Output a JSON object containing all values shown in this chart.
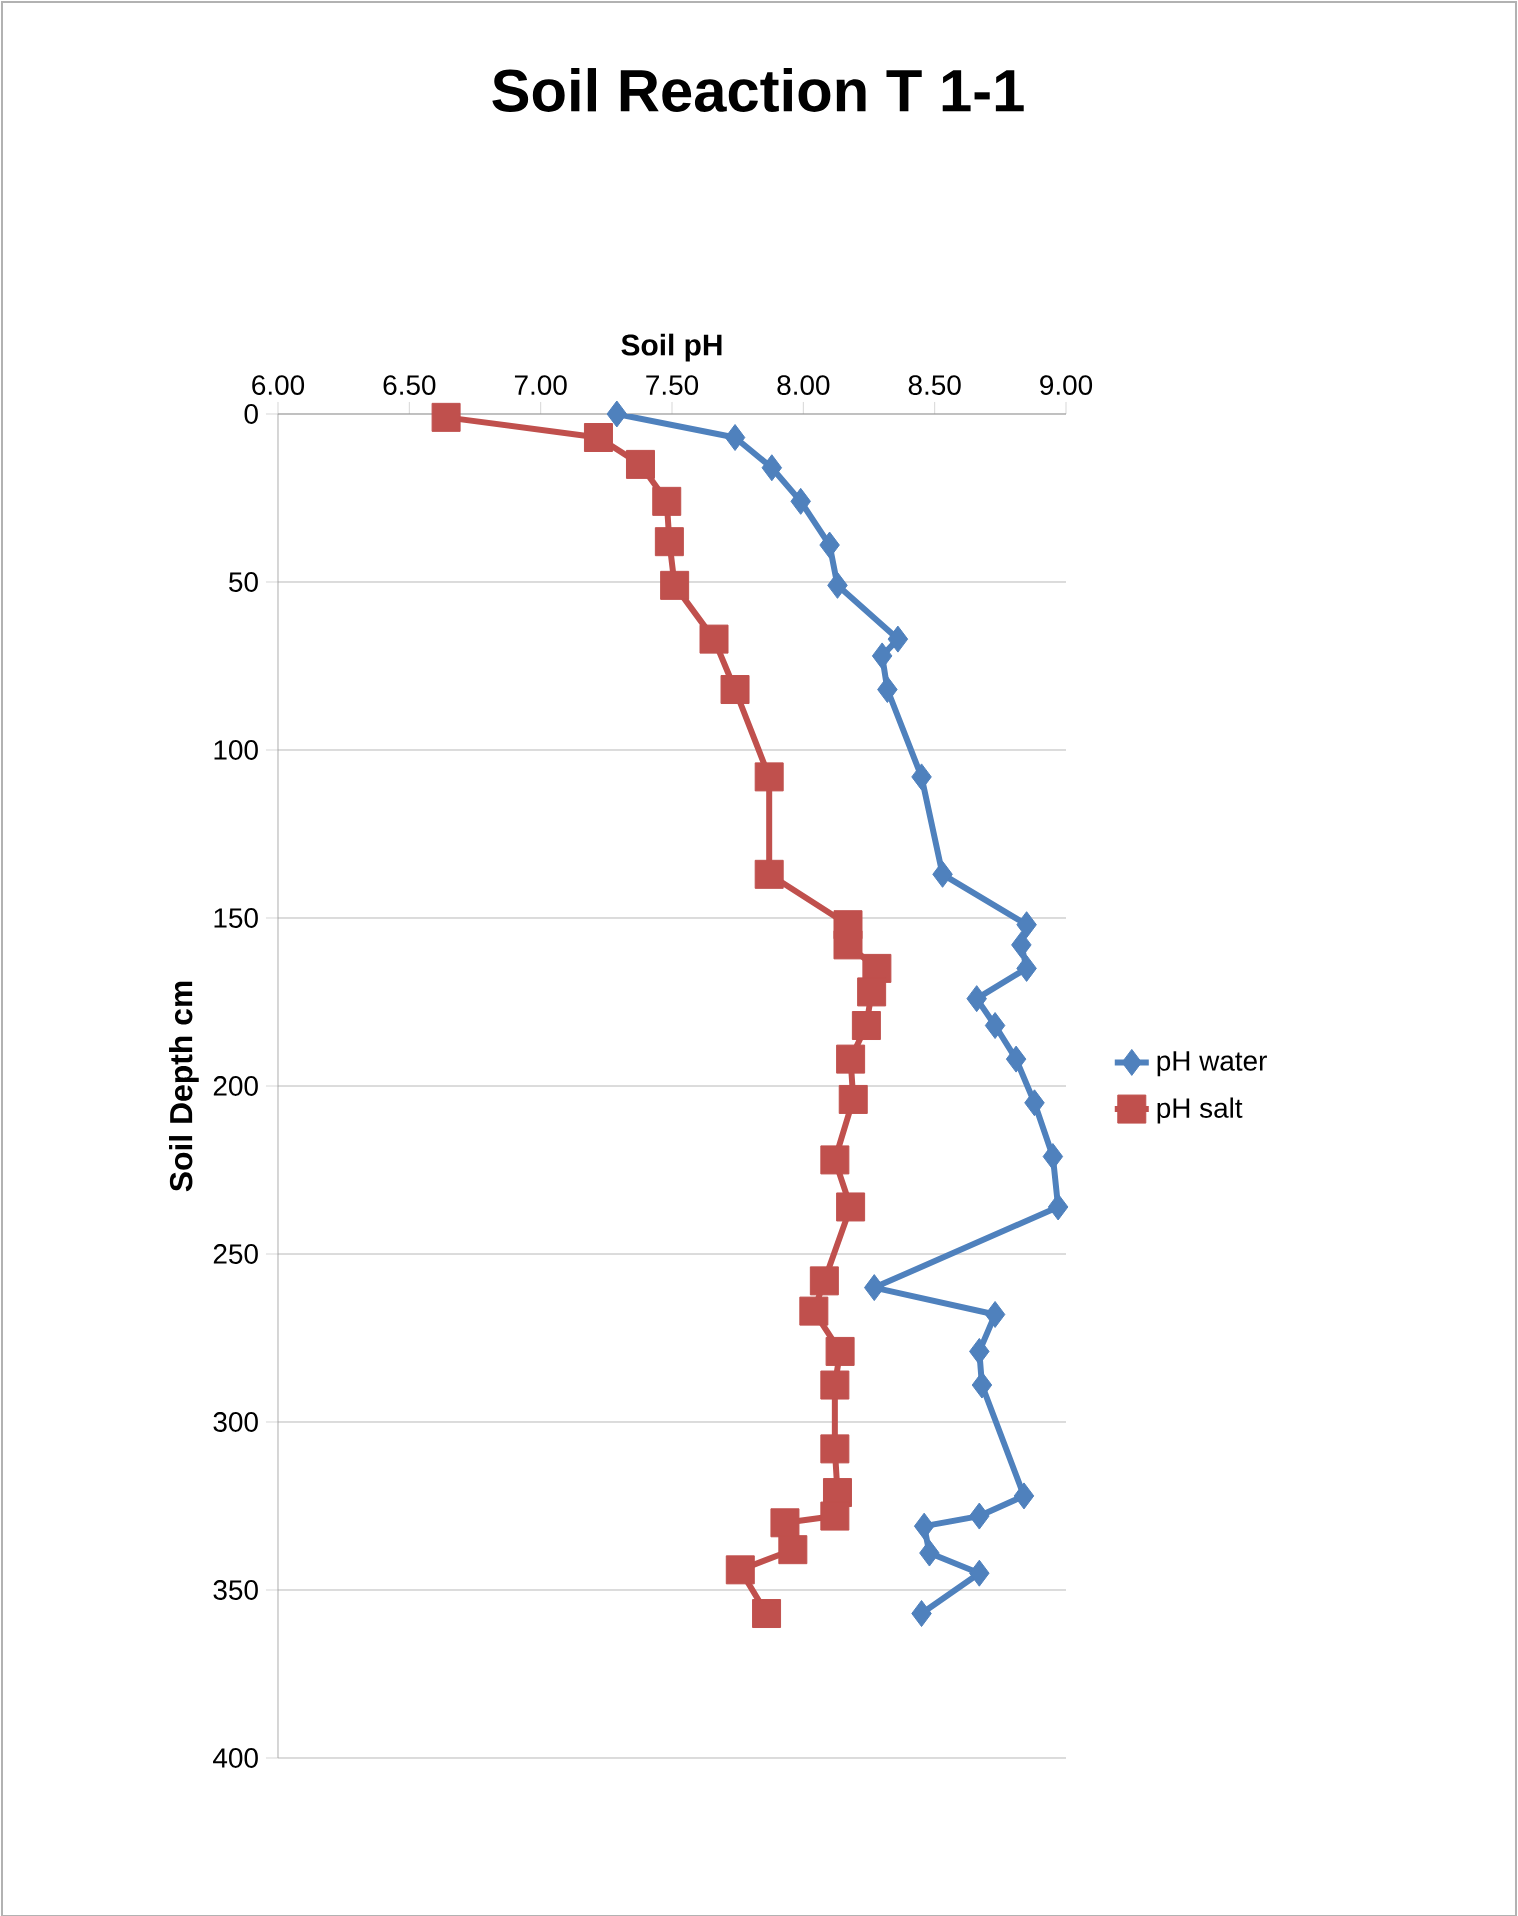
{
  "chart_data": {
    "type": "line",
    "title": "Soil Reaction T 1-1",
    "xlabel": "Soil pH",
    "ylabel": "Soil Depth cm",
    "xlim": [
      6,
      9
    ],
    "xticks": [
      {
        "value": 6,
        "label": "6.00"
      },
      {
        "value": 6.5,
        "label": "6.50"
      },
      {
        "value": 7,
        "label": "7.00"
      },
      {
        "value": 7.5,
        "label": "7.50"
      },
      {
        "value": 8,
        "label": "8.00"
      },
      {
        "value": 8.5,
        "label": "8.50"
      },
      {
        "value": 9,
        "label": "9.00"
      }
    ],
    "ylim": [
      400,
      0
    ],
    "yticks": [
      0,
      50,
      100,
      150,
      200,
      250,
      300,
      350,
      400
    ],
    "grid": "y",
    "legend": "right",
    "series": [
      {
        "name": "pH water",
        "color": "#4f81bd",
        "marker": "diamond",
        "x": [
          7.29,
          7.74,
          7.88,
          7.99,
          8.1,
          8.13,
          8.36,
          8.3,
          8.32,
          8.45,
          8.53,
          8.85,
          8.83,
          8.85,
          8.66,
          8.73,
          8.81,
          8.88,
          8.95,
          8.97,
          8.27,
          8.73,
          8.67,
          8.68,
          8.84,
          8.67,
          8.46,
          8.48,
          8.67,
          8.45
        ],
        "values": [
          0,
          7,
          16,
          26,
          39,
          51,
          67,
          72,
          82,
          108,
          137,
          152,
          158,
          165,
          174,
          182,
          192,
          205,
          221,
          236,
          260,
          268,
          279,
          289,
          322,
          328,
          331,
          339,
          345,
          357
        ]
      },
      {
        "name": "pH salt",
        "color": "#c0504d",
        "marker": "square",
        "x": [
          6.64,
          7.22,
          7.38,
          7.48,
          7.49,
          7.51,
          7.66,
          7.74,
          7.87,
          7.87,
          8.17,
          8.17,
          8.28,
          8.26,
          8.24,
          8.18,
          8.19,
          8.12,
          8.18,
          8.08,
          8.04,
          8.14,
          8.12,
          8.12,
          8.13,
          8.12,
          7.93,
          7.96,
          7.76,
          7.86
        ],
        "values": [
          1,
          7,
          15,
          26,
          38,
          51,
          67,
          82,
          108,
          137,
          152,
          158,
          165,
          172,
          182,
          192,
          204,
          222,
          236,
          258,
          267,
          279,
          289,
          308,
          321,
          328,
          330,
          338,
          344,
          357
        ]
      }
    ]
  }
}
